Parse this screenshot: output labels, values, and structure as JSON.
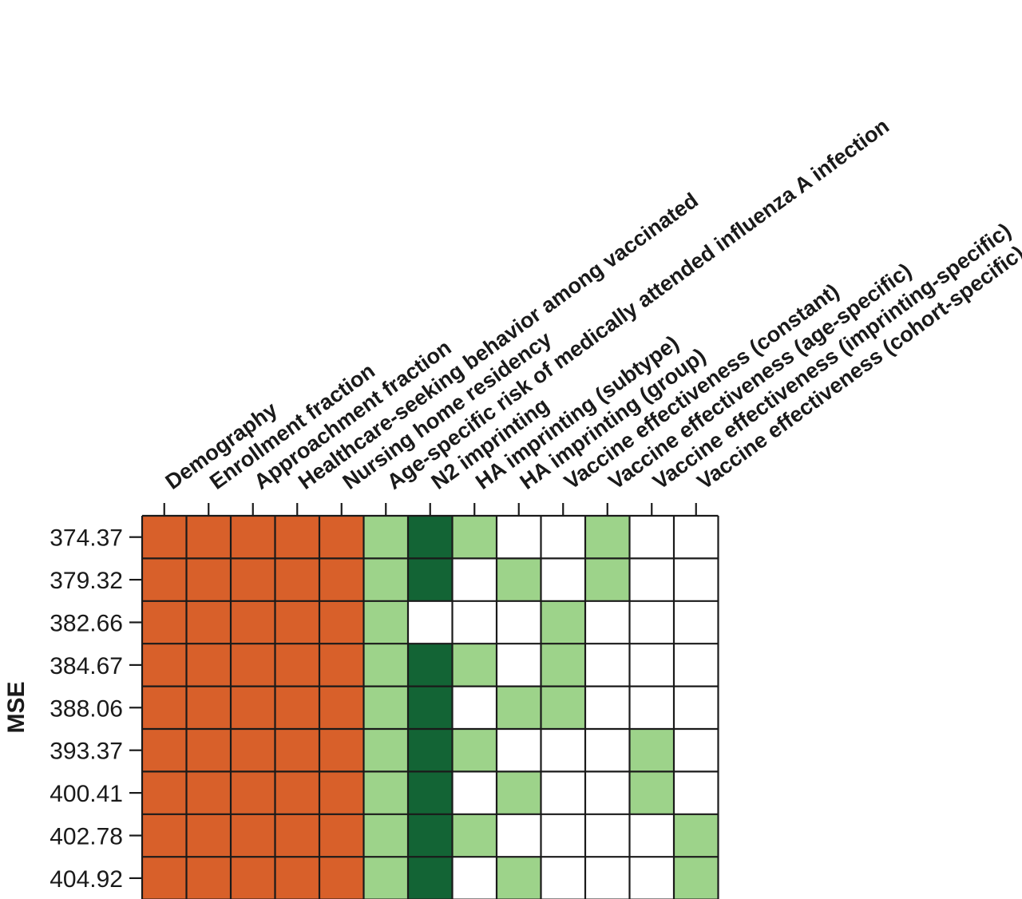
{
  "chart_data": {
    "type": "heatmap",
    "ylabel": "MSE",
    "columns": [
      "Demography",
      "Enrollment fraction",
      "Approachment fraction",
      "Healthcare-seeking behavior among vaccinated",
      "Nursing home residency",
      "Age-specific risk of medically attended influenza A infection",
      "N2 imprinting",
      "HA imprinting (subtype)",
      "HA imprinting (group)",
      "Vaccine effectiveness (constant)",
      "Vaccine effectiveness (age-specific)",
      "Vaccine effectiveness (imprinting-specific)",
      "Vaccine effectiveness (cohort-specific)"
    ],
    "rows": [
      "374.37",
      "379.32",
      "382.66",
      "384.67",
      "388.06",
      "393.37",
      "400.41",
      "402.78",
      "404.92"
    ],
    "cell_states": [
      "absent",
      "included-fixed",
      "included-common",
      "included-selected"
    ],
    "colors": {
      "absent": "#ffffff",
      "included-fixed": "#d8602a",
      "included-common": "#9dd38a",
      "included-selected": "#136435",
      "grid": "#1a1a1a"
    },
    "matrix": [
      [
        1,
        1,
        1,
        1,
        1,
        2,
        3,
        2,
        0,
        0,
        2,
        0,
        0
      ],
      [
        1,
        1,
        1,
        1,
        1,
        2,
        3,
        0,
        2,
        0,
        2,
        0,
        0
      ],
      [
        1,
        1,
        1,
        1,
        1,
        2,
        0,
        0,
        0,
        2,
        0,
        0,
        0
      ],
      [
        1,
        1,
        1,
        1,
        1,
        2,
        3,
        2,
        0,
        2,
        0,
        0,
        0
      ],
      [
        1,
        1,
        1,
        1,
        1,
        2,
        3,
        0,
        2,
        2,
        0,
        0,
        0
      ],
      [
        1,
        1,
        1,
        1,
        1,
        2,
        3,
        2,
        0,
        0,
        0,
        2,
        0
      ],
      [
        1,
        1,
        1,
        1,
        1,
        2,
        3,
        0,
        2,
        0,
        0,
        2,
        0
      ],
      [
        1,
        1,
        1,
        1,
        1,
        2,
        3,
        2,
        0,
        0,
        0,
        0,
        2
      ],
      [
        1,
        1,
        1,
        1,
        1,
        2,
        3,
        0,
        2,
        0,
        0,
        0,
        2
      ]
    ]
  }
}
